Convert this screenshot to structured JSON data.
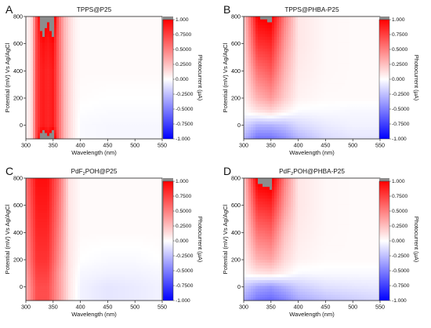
{
  "figure": {
    "panels": [
      {
        "letter": "A",
        "title": {
          "main": "TPPS@P25",
          "sub": "",
          "rest": ""
        }
      },
      {
        "letter": "B",
        "title": {
          "main": "TPPS@PHBA-P25",
          "sub": "",
          "rest": ""
        }
      },
      {
        "letter": "C",
        "title": {
          "main": "PdF",
          "sub": "2",
          "rest": "POH@P25"
        }
      },
      {
        "letter": "D",
        "title": {
          "main": "PdF",
          "sub": "2",
          "rest": "POH@PHBA-P25"
        }
      }
    ],
    "xlabel": "Wavelength (nm)",
    "ylabel": "Potential (mV) Vs Ag/AgCl",
    "colorbar_label": "Photocurrent (μA)",
    "xticks": [
      "300",
      "350",
      "400",
      "450",
      "500",
      "550"
    ],
    "yticks": [
      "0",
      "200",
      "400",
      "600",
      "800"
    ],
    "colorbar_ticks": [
      "1.000",
      "0.7500",
      "0.5000",
      "0.2500",
      "0.000",
      "-0.2500",
      "-0.5000",
      "-0.7500",
      "-1.000"
    ],
    "colors": {
      "positive": "#ff0000",
      "negative": "#0000ff",
      "zero": "#ffffff",
      "overflow": "#8c8c8c"
    }
  },
  "chart_data": [
    {
      "type": "heatmap",
      "panel": "A",
      "title": "TPPS@P25",
      "xlabel": "Wavelength (nm)",
      "ylabel": "Potential (mV) Vs Ag/AgCl",
      "colorbar_label": "Photocurrent (μA)",
      "xlim": [
        300,
        550
      ],
      "ylim": [
        -100,
        800
      ],
      "clim": [
        -1,
        1
      ],
      "wavelength": [
        300,
        310,
        320,
        330,
        340,
        350,
        360,
        370,
        380,
        390,
        400,
        450,
        500,
        550
      ],
      "potential_mV": [
        -100,
        0,
        200,
        400,
        600,
        800
      ],
      "photocurrent_uA": [
        [
          0.05,
          0.1,
          0.75,
          1.2,
          1.0,
          1.2,
          0.6,
          0.3,
          0.15,
          0.05,
          -0.02,
          -0.03,
          -0.03,
          -0.03
        ],
        [
          0.05,
          0.1,
          0.75,
          0.9,
          0.85,
          0.9,
          0.6,
          0.3,
          0.15,
          0.05,
          -0.02,
          -0.03,
          -0.03,
          -0.03
        ],
        [
          0.05,
          0.1,
          0.75,
          0.9,
          0.85,
          0.9,
          0.6,
          0.3,
          0.15,
          0.05,
          0.01,
          0.0,
          0.0,
          0.0
        ],
        [
          0.05,
          0.1,
          0.75,
          0.9,
          0.85,
          0.9,
          0.6,
          0.3,
          0.15,
          0.05,
          0.02,
          0.02,
          0.02,
          0.02
        ],
        [
          0.05,
          0.1,
          0.75,
          0.95,
          0.9,
          0.95,
          0.6,
          0.3,
          0.15,
          0.05,
          0.02,
          0.02,
          0.02,
          0.02
        ],
        [
          0.05,
          0.1,
          0.75,
          1.2,
          1.0,
          1.2,
          0.6,
          0.3,
          0.15,
          0.05,
          0.02,
          0.02,
          0.02,
          0.02
        ]
      ]
    },
    {
      "type": "heatmap",
      "panel": "B",
      "title": "TPPS@PHBA-P25",
      "xlabel": "Wavelength (nm)",
      "ylabel": "Potential (mV) Vs Ag/AgCl",
      "colorbar_label": "Photocurrent (μA)",
      "xlim": [
        300,
        550
      ],
      "ylim": [
        -100,
        800
      ],
      "clim": [
        -1,
        1
      ],
      "wavelength": [
        300,
        325,
        350,
        375,
        400,
        450,
        500,
        550
      ],
      "potential_mV": [
        -100,
        0,
        100,
        200,
        400,
        600,
        800
      ],
      "photocurrent_uA": [
        [
          -0.3,
          -0.55,
          -0.55,
          -0.45,
          -0.3,
          -0.15,
          -0.1,
          -0.1
        ],
        [
          -0.15,
          -0.3,
          -0.3,
          -0.25,
          -0.15,
          -0.08,
          -0.05,
          -0.05
        ],
        [
          0.0,
          0.1,
          0.15,
          0.05,
          -0.02,
          -0.02,
          -0.03,
          -0.03
        ],
        [
          0.05,
          0.3,
          0.4,
          0.2,
          0.05,
          0.02,
          0.02,
          0.02
        ],
        [
          0.1,
          0.55,
          0.65,
          0.3,
          0.08,
          0.03,
          0.02,
          0.02
        ],
        [
          0.15,
          0.8,
          0.85,
          0.4,
          0.1,
          0.03,
          0.02,
          0.02
        ],
        [
          0.2,
          1.0,
          1.05,
          0.5,
          0.1,
          0.03,
          0.02,
          0.02
        ]
      ]
    },
    {
      "type": "heatmap",
      "panel": "C",
      "title": "PdF2POH@P25",
      "xlabel": "Wavelength (nm)",
      "ylabel": "Potential (mV) Vs Ag/AgCl",
      "colorbar_label": "Photocurrent (μA)",
      "xlim": [
        300,
        550
      ],
      "ylim": [
        -100,
        800
      ],
      "clim": [
        -1,
        1
      ],
      "wavelength": [
        300,
        320,
        340,
        360,
        380,
        400,
        450,
        500,
        550
      ],
      "potential_mV": [
        -100,
        0,
        100,
        200,
        400,
        600,
        800
      ],
      "photocurrent_uA": [
        [
          0.3,
          0.7,
          0.7,
          0.4,
          0.1,
          -0.05,
          -0.1,
          -0.08,
          -0.05
        ],
        [
          0.3,
          0.7,
          0.7,
          0.4,
          0.1,
          -0.05,
          -0.1,
          -0.08,
          -0.05
        ],
        [
          0.35,
          0.75,
          0.75,
          0.4,
          0.1,
          -0.03,
          -0.05,
          -0.05,
          -0.03
        ],
        [
          0.4,
          0.8,
          0.8,
          0.45,
          0.1,
          0.0,
          -0.02,
          -0.02,
          0.0
        ],
        [
          0.45,
          0.85,
          0.85,
          0.5,
          0.1,
          0.02,
          0.02,
          0.02,
          0.02
        ],
        [
          0.5,
          0.9,
          0.9,
          0.55,
          0.1,
          0.02,
          0.02,
          0.02,
          0.02
        ],
        [
          0.55,
          0.95,
          0.95,
          0.6,
          0.1,
          0.02,
          0.02,
          0.02,
          0.02
        ]
      ]
    },
    {
      "type": "heatmap",
      "panel": "D",
      "title": "PdF2POH@PHBA-P25",
      "xlabel": "Wavelength (nm)",
      "ylabel": "Potential (mV) Vs Ag/AgCl",
      "colorbar_label": "Photocurrent (μA)",
      "xlim": [
        300,
        550
      ],
      "ylim": [
        -100,
        800
      ],
      "clim": [
        -1,
        1
      ],
      "wavelength": [
        300,
        325,
        350,
        375,
        400,
        450,
        500,
        550
      ],
      "potential_mV": [
        -100,
        0,
        100,
        200,
        400,
        600,
        800
      ],
      "photocurrent_uA": [
        [
          -0.35,
          -0.55,
          -0.6,
          -0.5,
          -0.35,
          -0.25,
          -0.2,
          -0.15
        ],
        [
          -0.2,
          -0.35,
          -0.4,
          -0.3,
          -0.2,
          -0.12,
          -0.1,
          -0.08
        ],
        [
          0.02,
          0.1,
          0.12,
          0.05,
          -0.02,
          -0.02,
          -0.02,
          -0.02
        ],
        [
          0.05,
          0.3,
          0.35,
          0.15,
          0.05,
          0.02,
          0.02,
          0.02
        ],
        [
          0.1,
          0.55,
          0.6,
          0.25,
          0.08,
          0.03,
          0.02,
          0.02
        ],
        [
          0.15,
          0.8,
          0.85,
          0.4,
          0.1,
          0.03,
          0.02,
          0.02
        ],
        [
          0.2,
          1.05,
          1.1,
          0.5,
          0.1,
          0.03,
          0.02,
          0.02
        ]
      ]
    }
  ]
}
